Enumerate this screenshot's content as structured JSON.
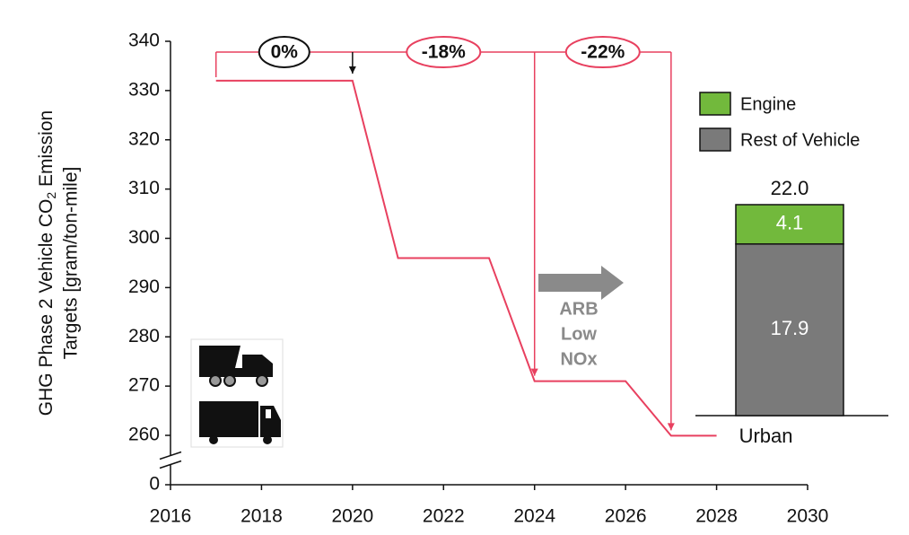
{
  "chart_data": [
    {
      "type": "line",
      "y_label": [
        "GHG Phase 2 Vehicle CO",
        "2",
        " Emission",
        "Targets [gram/ton-mile]"
      ],
      "x": [
        2017,
        2020,
        2021,
        2023,
        2024,
        2026,
        2027,
        2028
      ],
      "series": [
        {
          "name": "Urban",
          "color": "#e8405f",
          "values": [
            332,
            332,
            296,
            296,
            271,
            271,
            258,
            258
          ]
        }
      ],
      "xlim": [
        2016,
        2030
      ],
      "xticks": [
        2016,
        2018,
        2020,
        2022,
        2024,
        2026,
        2028,
        2030
      ],
      "ylim": [
        0,
        340
      ],
      "yticks": [
        0,
        260,
        270,
        280,
        290,
        300,
        310,
        320,
        330,
        340
      ],
      "axis_break": [
        0,
        260
      ],
      "annotations": [
        {
          "text": "0%",
          "x": 2020,
          "color": "#111111"
        },
        {
          "text": "-18%",
          "x": 2024,
          "color": "#e8405f"
        },
        {
          "text": "-22%",
          "x": 2027,
          "color": "#e8405f"
        }
      ],
      "note": [
        "ARB",
        "Low",
        "NOx"
      ]
    },
    {
      "type": "stacked_bar",
      "categories": [
        null
      ],
      "series": [
        {
          "name": "Rest of Vehicle",
          "color": "#7a7a7a",
          "values": [
            17.9
          ]
        },
        {
          "name": "Engine",
          "color": "#72b93c",
          "values": [
            4.1
          ]
        }
      ],
      "totals": [
        22
      ],
      "total_labels": [
        "22.0"
      ]
    }
  ]
}
